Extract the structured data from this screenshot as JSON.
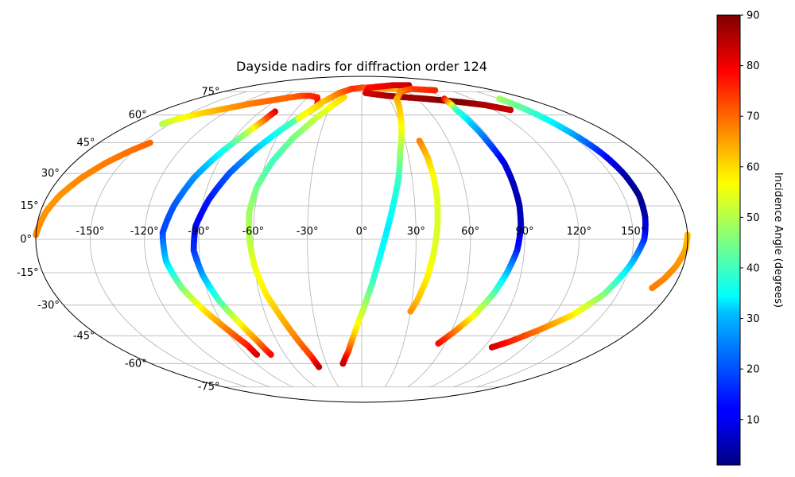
{
  "chart_data": {
    "type": "scatter",
    "projection": "mollweide",
    "title": "Dayside nadirs for diffraction order 124",
    "xlabel": "",
    "ylabel": "",
    "grid": true,
    "longitude_ticks": [
      "-150°",
      "-120°",
      "-90°",
      "-60°",
      "-30°",
      "0°",
      "30°",
      "60°",
      "90°",
      "120°",
      "150°"
    ],
    "latitude_ticks": [
      "-75°",
      "-60°",
      "-45°",
      "-30°",
      "-15°",
      "0°",
      "15°",
      "30°",
      "45°",
      "60°",
      "75°"
    ],
    "xlim": [
      -180,
      180
    ],
    "ylim": [
      -90,
      90
    ],
    "colorbar": {
      "label": "Incidence Angle (degrees)",
      "colormap": "jet",
      "vmin": 1,
      "vmax": 90,
      "ticks": [
        "10",
        "20",
        "30",
        "40",
        "50",
        "60",
        "70",
        "80",
        "90"
      ]
    },
    "series": [
      {
        "points": [
          {
            "lon": -156,
            "lat": 55,
            "inc": 50
          },
          {
            "lon": -150,
            "lat": 58,
            "inc": 55
          },
          {
            "lon": -140,
            "lat": 61,
            "inc": 60
          },
          {
            "lon": -125,
            "lat": 64,
            "inc": 65
          },
          {
            "lon": -110,
            "lat": 67,
            "inc": 68
          },
          {
            "lon": -95,
            "lat": 69,
            "inc": 70
          },
          {
            "lon": -80,
            "lat": 71,
            "inc": 70
          },
          {
            "lon": -70,
            "lat": 72,
            "inc": 72
          },
          {
            "lon": -60,
            "lat": 72,
            "inc": 75
          },
          {
            "lon": -50,
            "lat": 71,
            "inc": 76
          },
          {
            "lon": -45,
            "lat": 68,
            "inc": 78
          },
          {
            "lon": -43,
            "lat": 65,
            "inc": 82
          }
        ]
      },
      {
        "points": [
          {
            "lon": -180,
            "lat": 2,
            "inc": 67
          },
          {
            "lon": -177,
            "lat": 12,
            "inc": 66
          },
          {
            "lon": -173,
            "lat": 20,
            "inc": 66
          },
          {
            "lon": -167,
            "lat": 28,
            "inc": 67
          },
          {
            "lon": -160,
            "lat": 35,
            "inc": 68
          },
          {
            "lon": -152,
            "lat": 41,
            "inc": 69
          },
          {
            "lon": -145,
            "lat": 45,
            "inc": 70
          }
        ]
      },
      {
        "points": [
          {
            "lon": -77,
            "lat": 62,
            "inc": 82
          },
          {
            "lon": -79,
            "lat": 57,
            "inc": 70
          },
          {
            "lon": -84,
            "lat": 50,
            "inc": 50
          },
          {
            "lon": -92,
            "lat": 40,
            "inc": 35
          },
          {
            "lon": -100,
            "lat": 28,
            "inc": 25
          },
          {
            "lon": -106,
            "lat": 15,
            "inc": 20
          },
          {
            "lon": -110,
            "lat": 3,
            "inc": 18
          },
          {
            "lon": -109,
            "lat": -10,
            "inc": 30
          },
          {
            "lon": -104,
            "lat": -22,
            "inc": 45
          },
          {
            "lon": -97,
            "lat": -32,
            "inc": 58
          },
          {
            "lon": -89,
            "lat": -42,
            "inc": 68
          },
          {
            "lon": -83,
            "lat": -50,
            "inc": 76
          },
          {
            "lon": -82,
            "lat": -55,
            "inc": 82
          }
        ]
      },
      {
        "points": [
          {
            "lon": -40,
            "lat": 66,
            "inc": 52
          },
          {
            "lon": -50,
            "lat": 60,
            "inc": 45
          },
          {
            "lon": -60,
            "lat": 52,
            "inc": 38
          },
          {
            "lon": -70,
            "lat": 42,
            "inc": 30
          },
          {
            "lon": -80,
            "lat": 30,
            "inc": 20
          },
          {
            "lon": -87,
            "lat": 18,
            "inc": 14
          },
          {
            "lon": -92,
            "lat": 6,
            "inc": 12
          },
          {
            "lon": -93,
            "lat": -5,
            "inc": 16
          },
          {
            "lon": -90,
            "lat": -16,
            "inc": 26
          },
          {
            "lon": -85,
            "lat": -28,
            "inc": 40
          },
          {
            "lon": -79,
            "lat": -38,
            "inc": 55
          },
          {
            "lon": -74,
            "lat": -47,
            "inc": 66
          },
          {
            "lon": -71,
            "lat": -55,
            "inc": 78
          }
        ]
      },
      {
        "points": [
          {
            "lon": -20,
            "lat": 71,
            "inc": 60
          },
          {
            "lon": -28,
            "lat": 66,
            "inc": 58
          },
          {
            "lon": -38,
            "lat": 58,
            "inc": 52
          },
          {
            "lon": -48,
            "lat": 48,
            "inc": 45
          },
          {
            "lon": -56,
            "lat": 36,
            "inc": 40
          },
          {
            "lon": -61,
            "lat": 24,
            "inc": 44
          },
          {
            "lon": -63,
            "lat": 12,
            "inc": 48
          },
          {
            "lon": -62,
            "lat": 0,
            "inc": 50
          },
          {
            "lon": -60,
            "lat": -12,
            "inc": 55
          },
          {
            "lon": -56,
            "lat": -25,
            "inc": 58
          },
          {
            "lon": -50,
            "lat": -37,
            "inc": 63
          },
          {
            "lon": -45,
            "lat": -47,
            "inc": 68
          },
          {
            "lon": -40,
            "lat": -56,
            "inc": 74
          },
          {
            "lon": -38,
            "lat": -62,
            "inc": 84
          }
        ]
      },
      {
        "points": [
          {
            "lon": 50,
            "lat": 77,
            "inc": 62
          },
          {
            "lon": 20,
            "lat": 78,
            "inc": 67
          },
          {
            "lon": 0,
            "lat": 78,
            "inc": 72
          },
          {
            "lon": -15,
            "lat": 77,
            "inc": 75
          },
          {
            "lon": -28,
            "lat": 74,
            "inc": 70
          },
          {
            "lon": -40,
            "lat": 68,
            "inc": 62
          },
          {
            "lon": -52,
            "lat": 58,
            "inc": 55
          }
        ]
      },
      {
        "points": [
          {
            "lon": 80,
            "lat": 80,
            "inc": 84
          },
          {
            "lon": 55,
            "lat": 80,
            "inc": 82
          },
          {
            "lon": 30,
            "lat": 79,
            "inc": 80
          },
          {
            "lon": 10,
            "lat": 78,
            "inc": 78
          },
          {
            "lon": 5,
            "lat": 74,
            "inc": 82
          },
          {
            "lon": 30,
            "lat": 72,
            "inc": 86
          },
          {
            "lon": 70,
            "lat": 70,
            "inc": 88
          },
          {
            "lon": 100,
            "lat": 68,
            "inc": 90
          },
          {
            "lon": 120,
            "lat": 66,
            "inc": 86
          },
          {
            "lon": 135,
            "lat": 63,
            "inc": 84
          }
        ]
      },
      {
        "points": [
          {
            "lon": 100,
            "lat": 76,
            "inc": 76
          },
          {
            "lon": 70,
            "lat": 77,
            "inc": 74
          },
          {
            "lon": 50,
            "lat": 75,
            "inc": 68
          },
          {
            "lon": 38,
            "lat": 70,
            "inc": 64
          },
          {
            "lon": 33,
            "lat": 60,
            "inc": 60
          },
          {
            "lon": 29,
            "lat": 50,
            "inc": 55
          },
          {
            "lon": 25,
            "lat": 40,
            "inc": 48
          },
          {
            "lon": 22,
            "lat": 28,
            "inc": 40
          },
          {
            "lon": 18,
            "lat": 16,
            "inc": 36
          },
          {
            "lon": 14,
            "lat": 4,
            "inc": 33
          },
          {
            "lon": 10,
            "lat": -8,
            "inc": 35
          },
          {
            "lon": 6,
            "lat": -20,
            "inc": 40
          },
          {
            "lon": 1,
            "lat": -32,
            "inc": 50
          },
          {
            "lon": -5,
            "lat": -44,
            "inc": 60
          },
          {
            "lon": -10,
            "lat": -53,
            "inc": 72
          },
          {
            "lon": -16,
            "lat": -60,
            "inc": 84
          }
        ]
      },
      {
        "points": [
          {
            "lon": 40,
            "lat": 46,
            "inc": 68
          },
          {
            "lon": 42,
            "lat": 38,
            "inc": 62
          },
          {
            "lon": 43,
            "lat": 28,
            "inc": 56
          },
          {
            "lon": 43,
            "lat": 18,
            "inc": 54
          },
          {
            "lon": 42,
            "lat": 6,
            "inc": 53
          },
          {
            "lon": 40,
            "lat": -6,
            "inc": 54
          },
          {
            "lon": 37,
            "lat": -18,
            "inc": 58
          },
          {
            "lon": 33,
            "lat": -28,
            "inc": 62
          },
          {
            "lon": 30,
            "lat": -33,
            "inc": 66
          }
        ]
      },
      {
        "points": [
          {
            "lon": 90,
            "lat": 70,
            "inc": 78
          },
          {
            "lon": 86,
            "lat": 63,
            "inc": 40
          },
          {
            "lon": 86,
            "lat": 55,
            "inc": 30
          },
          {
            "lon": 87,
            "lat": 45,
            "inc": 20
          },
          {
            "lon": 89,
            "lat": 35,
            "inc": 10
          },
          {
            "lon": 89,
            "lat": 25,
            "inc": 6
          },
          {
            "lon": 89,
            "lat": 15,
            "inc": 5
          },
          {
            "lon": 88,
            "lat": 5,
            "inc": 8
          },
          {
            "lon": 86,
            "lat": -5,
            "inc": 14
          },
          {
            "lon": 82,
            "lat": -15,
            "inc": 28
          },
          {
            "lon": 77,
            "lat": -25,
            "inc": 42
          },
          {
            "lon": 70,
            "lat": -35,
            "inc": 55
          },
          {
            "lon": 62,
            "lat": -43,
            "inc": 68
          },
          {
            "lon": 55,
            "lat": -49,
            "inc": 78
          }
        ]
      },
      {
        "points": [
          {
            "lon": 150,
            "lat": 70,
            "inc": 48
          },
          {
            "lon": 150,
            "lat": 62,
            "inc": 40
          },
          {
            "lon": 152,
            "lat": 52,
            "inc": 30
          },
          {
            "lon": 156,
            "lat": 40,
            "inc": 15
          },
          {
            "lon": 158,
            "lat": 30,
            "inc": 5
          },
          {
            "lon": 159,
            "lat": 20,
            "inc": 2
          },
          {
            "lon": 158,
            "lat": 10,
            "inc": 5
          },
          {
            "lon": 156,
            "lat": 0,
            "inc": 15
          },
          {
            "lon": 150,
            "lat": -12,
            "inc": 30
          },
          {
            "lon": 142,
            "lat": -25,
            "inc": 45
          },
          {
            "lon": 131,
            "lat": -35,
            "inc": 58
          },
          {
            "lon": 118,
            "lat": -42,
            "inc": 68
          },
          {
            "lon": 105,
            "lat": -48,
            "inc": 76
          },
          {
            "lon": 96,
            "lat": -51,
            "inc": 82
          }
        ]
      },
      {
        "points": [
          {
            "lon": 180,
            "lat": 2,
            "inc": 62
          },
          {
            "lon": 179,
            "lat": -5,
            "inc": 64
          },
          {
            "lon": 176,
            "lat": -12,
            "inc": 66
          },
          {
            "lon": 172,
            "lat": -18,
            "inc": 67
          },
          {
            "lon": 168,
            "lat": -22,
            "inc": 68
          }
        ]
      }
    ]
  }
}
